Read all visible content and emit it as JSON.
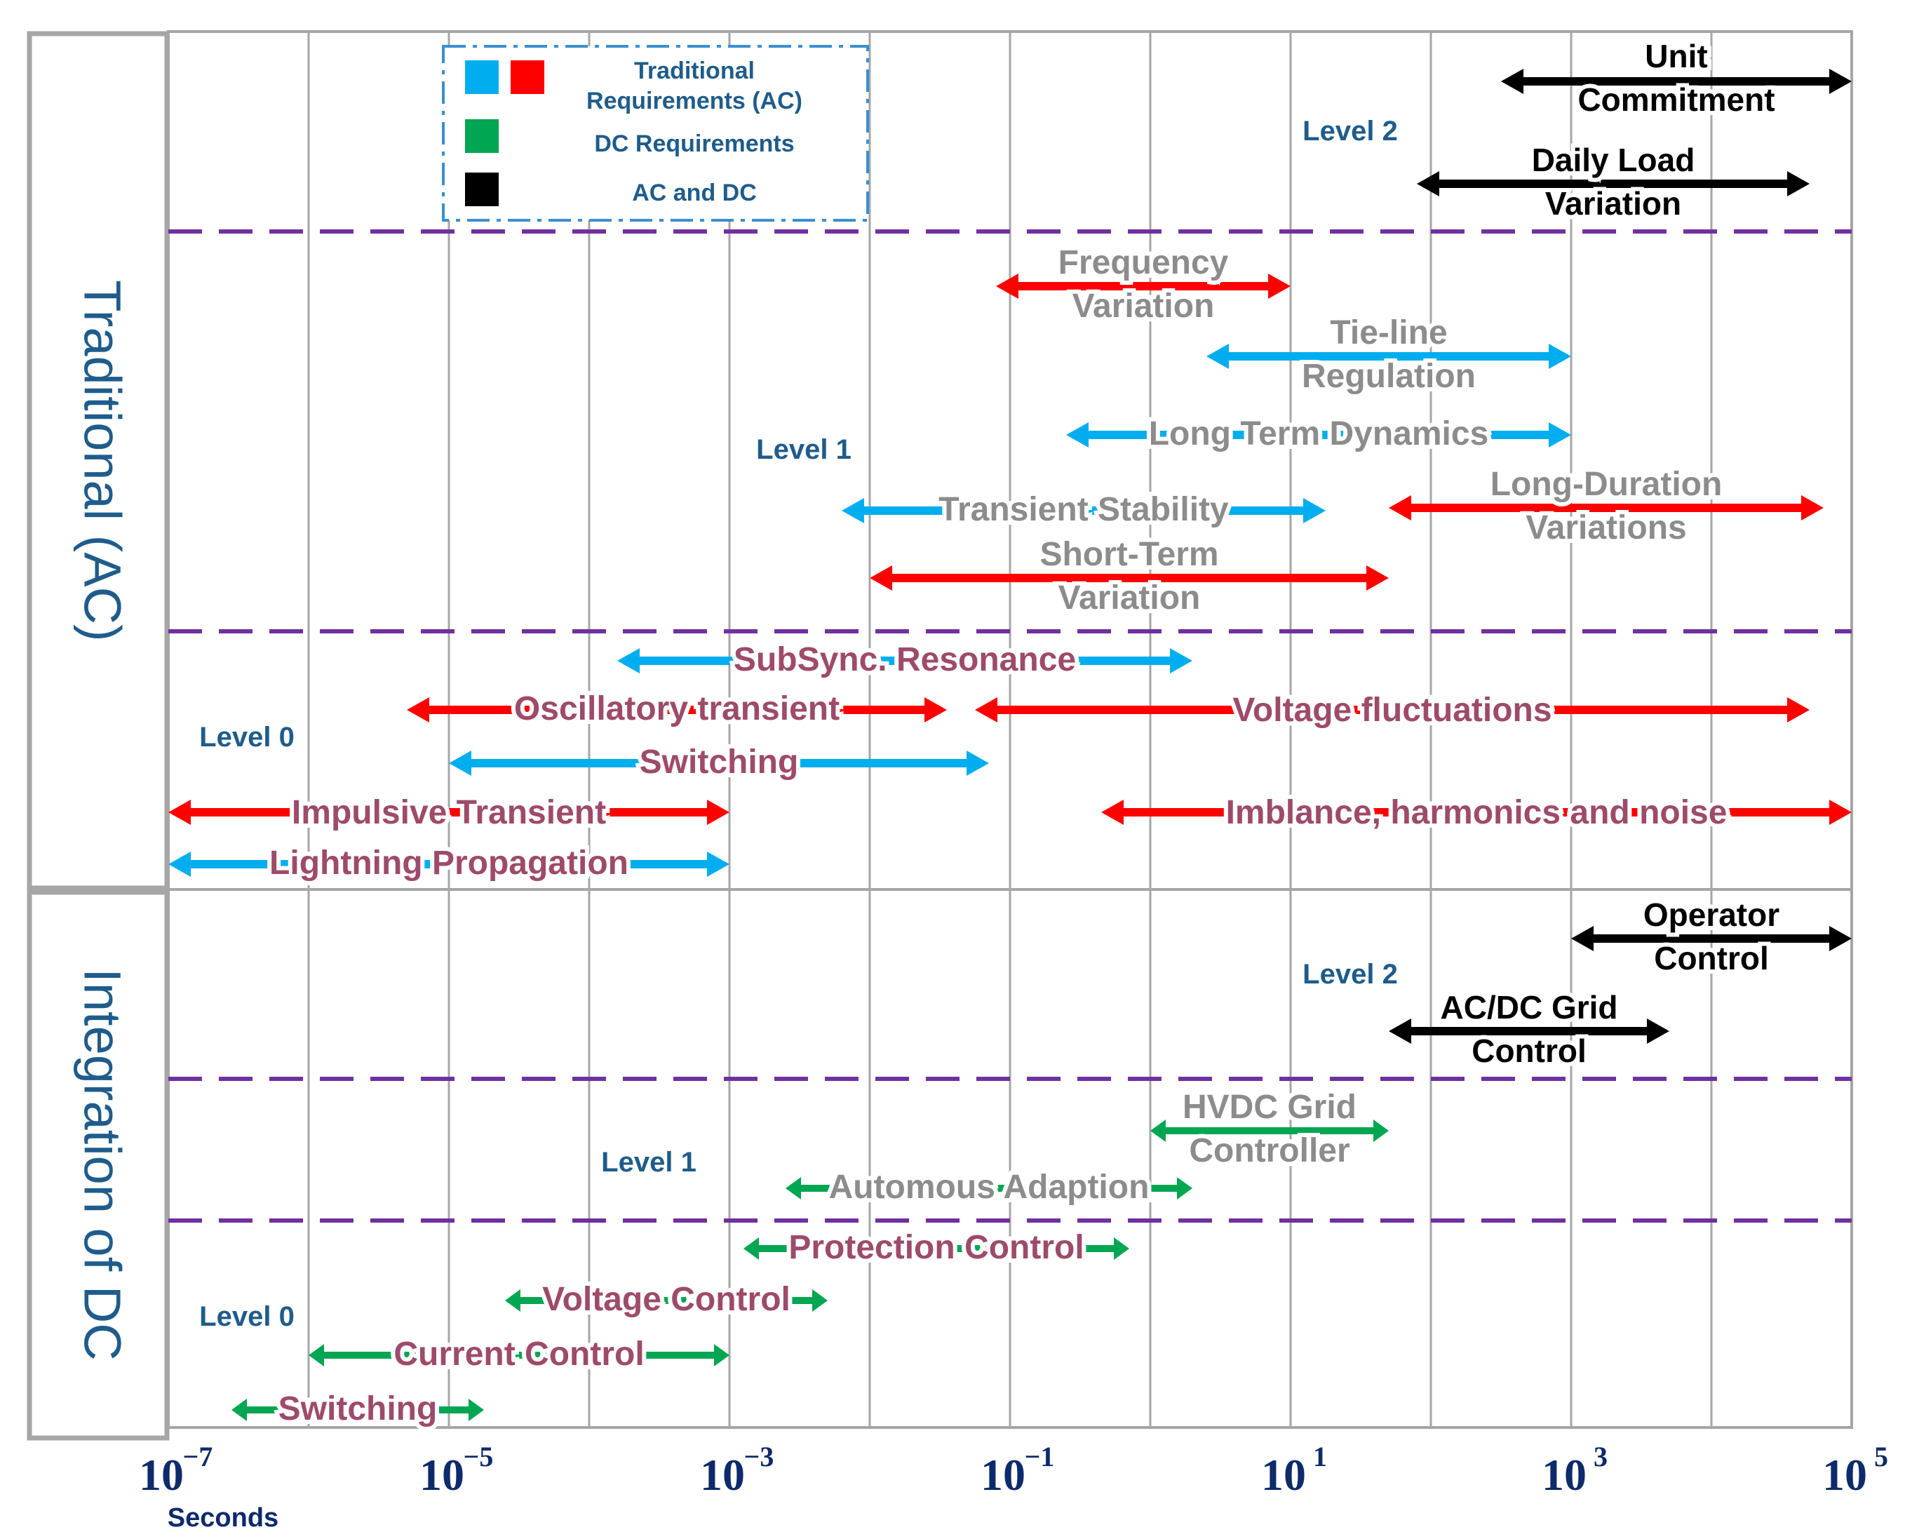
{
  "sections": {
    "traditional": "Traditional (AC)",
    "dc": "Integration of DC"
  },
  "axis": {
    "unit_label": "Seconds",
    "ticks": [
      {
        "base": "10",
        "exp": "−7",
        "value": -7
      },
      {
        "base": "10",
        "exp": "−5",
        "value": -5
      },
      {
        "base": "10",
        "exp": "−3",
        "value": -3
      },
      {
        "base": "10",
        "exp": "−1",
        "value": -1
      },
      {
        "base": "10",
        "exp": "1",
        "value": 1
      },
      {
        "base": "10",
        "exp": "3",
        "value": 3
      },
      {
        "base": "10",
        "exp": "5",
        "value": 5
      }
    ]
  },
  "legend": {
    "items": [
      {
        "label": "Traditional",
        "label2": "Requirements (AC)",
        "colors": [
          "#00aeef",
          "#ff0000"
        ]
      },
      {
        "label": "DC Requirements",
        "colors": [
          "#00a651"
        ]
      },
      {
        "label": "AC and DC",
        "colors": [
          "#000000"
        ]
      }
    ]
  },
  "levels": {
    "ac_level2": "Level 2",
    "ac_level1": "Level 1",
    "ac_level0": "Level 0",
    "dc_level2": "Level 2",
    "dc_level1": "Level 1",
    "dc_level0": "Level 0"
  },
  "colors": {
    "ac_blue": "#00aeef",
    "ac_red": "#ff0000",
    "dc_green": "#00a651",
    "black": "#000000",
    "level_text": "#1f5c8b",
    "label_gray": "#8c8c8c",
    "label_maroon": "#9e4a6b",
    "divider": "#7030a0",
    "grid": "#a6a6a6"
  },
  "chart_data": {
    "type": "range-timeline",
    "xscale": "log10",
    "xlim": [
      -7,
      5
    ],
    "xlabel": "Seconds",
    "ranges": [
      {
        "label": "Unit",
        "label2": "Commitment",
        "from": 2.5,
        "to": 5.0,
        "color": "black",
        "text": "black"
      },
      {
        "label": "Daily Load",
        "label2": "Variation",
        "from": 1.9,
        "to": 4.7,
        "color": "black",
        "text": "black"
      },
      {
        "label": "Frequency",
        "label2": "Variation",
        "from": -1.1,
        "to": 1.0,
        "color": "red",
        "text": "gray"
      },
      {
        "label": "Tie-line",
        "label2": "Regulation",
        "from": 0.4,
        "to": 3.0,
        "color": "blue",
        "text": "gray"
      },
      {
        "label": "Long Term Dynamics",
        "from": -0.6,
        "to": 3.0,
        "color": "blue",
        "text": "gray"
      },
      {
        "label": "Long-Duration",
        "label2": "Variations",
        "from": 1.7,
        "to": 4.8,
        "color": "red",
        "text": "gray"
      },
      {
        "label": "Transient Stability",
        "from": -2.2,
        "to": 1.25,
        "color": "blue",
        "text": "gray"
      },
      {
        "label": "Short-Term",
        "label2": "Variation",
        "from": -2.0,
        "to": 1.7,
        "color": "red",
        "text": "gray"
      },
      {
        "label": "SubSync. Resonance",
        "from": -3.8,
        "to": 0.3,
        "color": "blue",
        "text": "maroon"
      },
      {
        "label": "Oscillatory transient",
        "from": -5.3,
        "to": -1.45,
        "color": "red",
        "text": "maroon"
      },
      {
        "label": "Voltage fluctuations",
        "from": -1.25,
        "to": 4.7,
        "color": "red",
        "text": "maroon"
      },
      {
        "label": "Switching",
        "from": -5.0,
        "to": -1.15,
        "color": "blue",
        "text": "maroon"
      },
      {
        "label": "Impulsive Transient",
        "from": -7.0,
        "to": -3.0,
        "color": "red",
        "text": "maroon"
      },
      {
        "label": "Imblance, harmonics and noise",
        "from": -0.35,
        "to": 5.0,
        "color": "red",
        "text": "maroon"
      },
      {
        "label": "Lightning Propagation",
        "from": -7.0,
        "to": -3.0,
        "color": "blue",
        "text": "maroon"
      },
      {
        "label": "Operator",
        "label2": "Control",
        "from": 3.0,
        "to": 5.0,
        "color": "black",
        "text": "black"
      },
      {
        "label": "AC/DC Grid",
        "label2": "Control",
        "from": 1.7,
        "to": 3.7,
        "color": "black",
        "text": "black"
      },
      {
        "label": "HVDC Grid",
        "label2": "Controller",
        "from": 0.0,
        "to": 1.7,
        "color": "green",
        "text": "gray"
      },
      {
        "label": "Automous Adaption",
        "from": -2.6,
        "to": 0.3,
        "color": "green",
        "text": "gray"
      },
      {
        "label": "Protection Control",
        "from": -2.9,
        "to": -0.15,
        "color": "green",
        "text": "maroon"
      },
      {
        "label": "Voltage Control",
        "from": -4.6,
        "to": -2.3,
        "color": "green",
        "text": "maroon"
      },
      {
        "label": "Current Control",
        "from": -6.0,
        "to": -3.0,
        "color": "green",
        "text": "maroon"
      },
      {
        "label": "Switching",
        "from": -6.55,
        "to": -4.75,
        "color": "green",
        "text": "maroon"
      }
    ]
  }
}
